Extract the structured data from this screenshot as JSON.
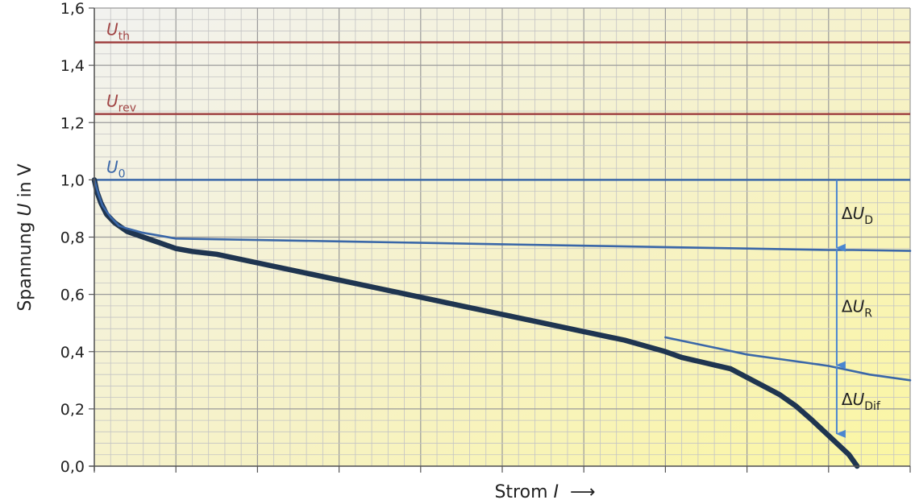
{
  "chart_data": {
    "type": "line",
    "ylabel_prefix": "Spannung ",
    "ylabel_var": "U",
    "ylabel_suffix": " in V",
    "xlabel_text": "Strom ",
    "xlabel_var": "I",
    "xlabel_arrow": "⟶",
    "ylim": [
      0,
      1.6
    ],
    "xlim": [
      0,
      100
    ],
    "y_ticks": [
      "0,0",
      "0,2",
      "0,4",
      "0,6",
      "0,8",
      "1,0",
      "1,2",
      "1,4",
      "1,6"
    ],
    "grid": true,
    "reference_lines": [
      {
        "name": "U_th",
        "symbol": "U",
        "subscript": "th",
        "y": 1.48,
        "color": "#a04343"
      },
      {
        "name": "U_rev",
        "symbol": "U",
        "subscript": "rev",
        "y": 1.23,
        "color": "#a04343"
      },
      {
        "name": "U_0",
        "symbol": "U",
        "subscript": "0",
        "y": 1.0,
        "color": "#3a67a8"
      }
    ],
    "series": [
      {
        "color": "#1f3550",
        "x": [
          0,
          0.3,
          0.8,
          1.5,
          2.5,
          4,
          6,
          8,
          10,
          12,
          15,
          20,
          25,
          30,
          35,
          40,
          45,
          50,
          55,
          60,
          65,
          70,
          72,
          75,
          78,
          80,
          82,
          84,
          86,
          88,
          89.5,
          91,
          92.5,
          93.5
        ],
        "y": [
          1.0,
          0.96,
          0.92,
          0.88,
          0.85,
          0.82,
          0.8,
          0.78,
          0.76,
          0.75,
          0.74,
          0.71,
          0.68,
          0.65,
          0.62,
          0.59,
          0.56,
          0.53,
          0.5,
          0.47,
          0.44,
          0.4,
          0.38,
          0.36,
          0.34,
          0.31,
          0.28,
          0.25,
          0.21,
          0.16,
          0.12,
          0.08,
          0.04,
          0.0
        ]
      },
      {
        "color": "#3a67a8",
        "x": [
          0,
          0.5,
          1,
          2,
          3,
          4,
          6,
          8,
          10,
          20,
          30,
          40,
          50,
          60,
          70,
          80,
          90,
          93,
          100
        ],
        "y": [
          1.0,
          0.95,
          0.91,
          0.87,
          0.84,
          0.83,
          0.815,
          0.805,
          0.795,
          0.79,
          0.785,
          0.78,
          0.775,
          0.77,
          0.765,
          0.76,
          0.755,
          0.755,
          0.752
        ]
      },
      {
        "color": "#3a67a8",
        "x": [
          70,
          75,
          80,
          85,
          90,
          95,
          100
        ],
        "y": [
          0.45,
          0.42,
          0.39,
          0.37,
          0.35,
          0.32,
          0.3
        ]
      }
    ],
    "annotations": [
      {
        "name": "delta-U-D",
        "prefix": "Δ",
        "symbol": "U",
        "subscript": "D",
        "x": 91,
        "from": 1.0,
        "to": 0.76
      },
      {
        "name": "delta-U-R",
        "prefix": "Δ",
        "symbol": "U",
        "subscript": "R",
        "x": 91,
        "from": 0.76,
        "to": 0.35
      },
      {
        "name": "delta-U-Dif",
        "prefix": "Δ",
        "symbol": "U",
        "subscript": "Dif",
        "x": 91,
        "from": 0.35,
        "to": 0.11
      }
    ],
    "colors": {
      "grid_major": "#9a9a9a",
      "grid_minor": "#c4c4c4",
      "annotation_arrow": "#4a86d0",
      "annotation_text": "#222222"
    }
  }
}
